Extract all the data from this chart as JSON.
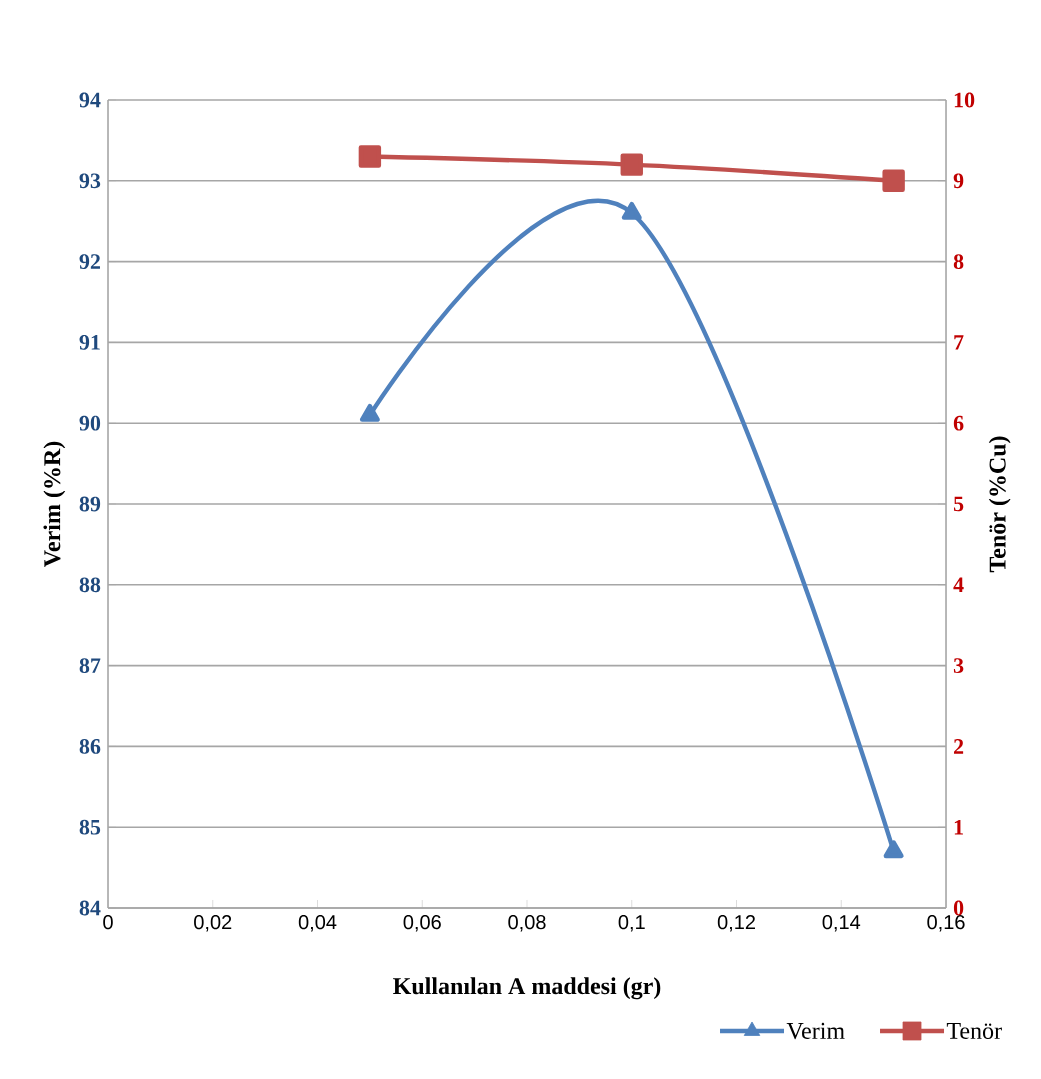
{
  "chart_data": {
    "type": "line",
    "xlabel": "Kullanılan A maddesi (gr)",
    "ylabel": "Verim (%R)",
    "y2label": "Tenör (%Cu)",
    "x": [
      0.05,
      0.1,
      0.15
    ],
    "series": [
      {
        "name": "Verim",
        "color": "#4f81bd",
        "values": [
          90.1,
          92.6,
          84.7
        ],
        "marker": "triangle"
      },
      {
        "name": "Tenör",
        "color": "#c0504d",
        "values": [
          9.3,
          9.2,
          9.0
        ],
        "marker": "square",
        "axis": "y2"
      }
    ],
    "xlim": [
      0,
      0.16
    ],
    "xticks": [
      0,
      {
        "value": 0.02,
        "label": "0,02"
      },
      {
        "value": 0.04,
        "label": "0,04"
      },
      {
        "value": 0.06,
        "label": "0,06"
      },
      {
        "value": 0.08,
        "label": "0,08"
      },
      {
        "value": 0.1,
        "label": "0,1"
      },
      {
        "value": 0.12,
        "label": "0,12"
      },
      {
        "value": 0.14,
        "label": "0,14"
      },
      {
        "value": 0.16,
        "label": "0,16"
      }
    ],
    "ylim": [
      84,
      94
    ],
    "yticks": [
      84,
      85,
      86,
      87,
      88,
      89,
      90,
      91,
      92,
      93,
      94
    ],
    "y2lim": [
      0,
      10
    ],
    "y2ticks": [
      0,
      1,
      2,
      3,
      4,
      5,
      6,
      7,
      8,
      9,
      10
    ],
    "grid": "y",
    "legend": "bottom right",
    "line_style": "solid"
  }
}
